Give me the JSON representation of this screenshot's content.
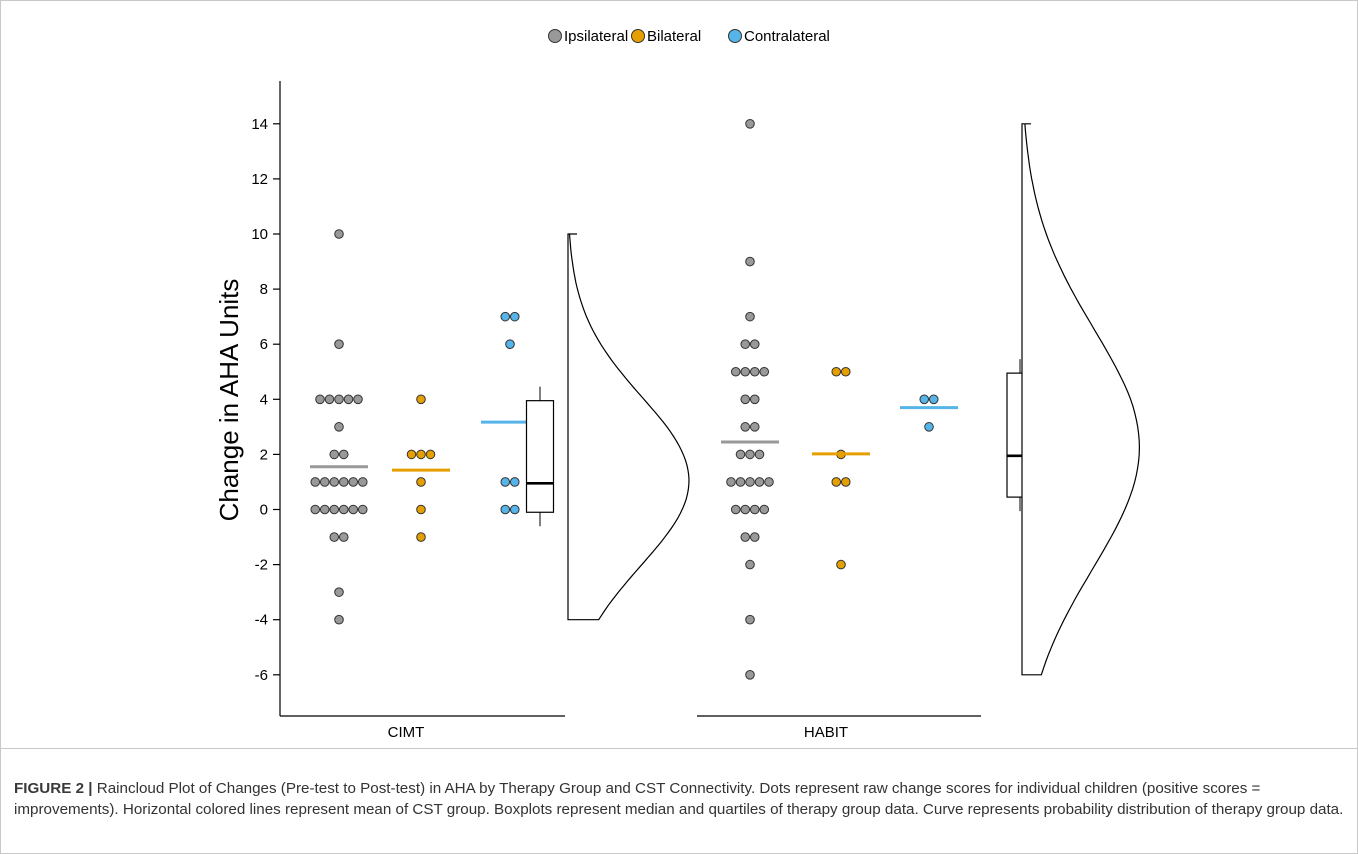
{
  "chart_data": {
    "type": "raincloud",
    "legend": {
      "position": "top",
      "entries": [
        {
          "label": "Ipsilateral",
          "color": "#999999"
        },
        {
          "label": "Bilateral",
          "color": "#E69F00"
        },
        {
          "label": "Contralateral",
          "color": "#56B4E9"
        }
      ]
    },
    "ylabel": "Change in AHA Units",
    "ylim": [
      -7.5,
      15.5
    ],
    "yticks": [
      "14",
      "12",
      "10",
      "8",
      "6",
      "4",
      "2",
      "0",
      "-2",
      "-4",
      "-6"
    ],
    "ytick_values": [
      14,
      12,
      10,
      8,
      6,
      4,
      2,
      0,
      -2,
      -4,
      -6
    ],
    "groups": [
      {
        "name": "CIMT",
        "series": [
          {
            "name": "Ipsilateral",
            "mean": 1.55,
            "values": [
              10,
              6,
              4,
              4,
              4,
              4,
              4,
              3,
              2,
              2,
              1,
              1,
              1,
              1,
              1,
              1,
              0,
              0,
              0,
              0,
              0,
              0,
              -1,
              -1,
              -3,
              -4
            ]
          },
          {
            "name": "Bilateral",
            "mean": 1.43,
            "values": [
              4,
              2,
              2,
              2,
              1,
              0,
              -1
            ]
          },
          {
            "name": "Contralateral",
            "mean": 3.17,
            "values": [
              7,
              7,
              6,
              1,
              1,
              0,
              0
            ]
          }
        ],
        "box": {
          "q1": -0.1,
          "median": 0.95,
          "q3": 3.95,
          "min": -4,
          "max": 10
        },
        "density_peak": 1.0
      },
      {
        "name": "HABIT",
        "series": [
          {
            "name": "Ipsilateral",
            "mean": 2.45,
            "values": [
              14,
              9,
              7,
              6,
              6,
              5,
              5,
              5,
              5,
              4,
              4,
              3,
              3,
              2,
              2,
              2,
              1,
              1,
              1,
              1,
              1,
              0,
              0,
              0,
              0,
              -1,
              -1,
              -2,
              -4,
              -6
            ]
          },
          {
            "name": "Bilateral",
            "mean": 2.02,
            "values": [
              5,
              5,
              2,
              1,
              1,
              -2
            ]
          },
          {
            "name": "Contralateral",
            "mean": 3.7,
            "values": [
              4,
              4,
              3
            ]
          }
        ],
        "box": {
          "q1": 0.45,
          "median": 1.95,
          "q3": 4.95,
          "min": -6,
          "max": 14
        },
        "density_peak": 2.2
      }
    ]
  },
  "caption": {
    "label": "FIGURE 2 |",
    "text": "Raincloud Plot of Changes (Pre-test to Post-test) in AHA by Therapy Group and CST Connectivity. Dots represent raw change scores for individual children (positive scores = improvements). Horizontal colored lines represent mean of CST group. Boxplots represent median and quartiles of therapy group data. Curve represents probability distribution of therapy group data."
  }
}
